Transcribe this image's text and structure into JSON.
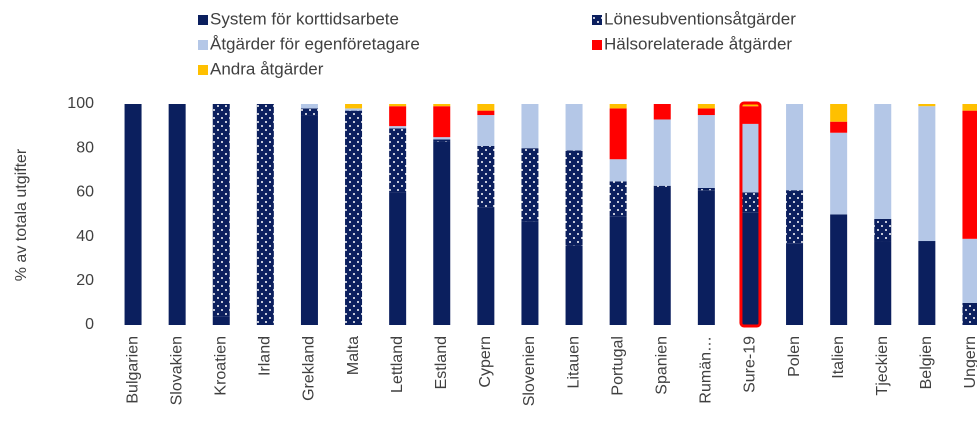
{
  "chart_data": {
    "type": "stacked_bar",
    "y_label": "% av totala utgifter",
    "categories": [
      "Bulgarien",
      "Slovakien",
      "Kroatien",
      "Irland",
      "Grekland",
      "Malta",
      "Lettland",
      "Estland",
      "Cypern",
      "Slovenien",
      "Litauen",
      "Portugal",
      "Spanien",
      "Rumän…",
      "Sure-19",
      "Polen",
      "Italien",
      "Tjeckien",
      "Belgien",
      "Ungern"
    ],
    "series": [
      {
        "name": "System för korttidsarbete",
        "color": "#0b1f5e",
        "values": [
          100,
          100,
          4,
          0,
          95,
          0,
          60,
          83,
          53,
          47,
          36,
          49,
          62,
          61,
          51,
          37,
          50,
          38,
          38,
          0
        ]
      },
      {
        "name": "Lönesubventionsåtgärder",
        "color": "#0b1f5e",
        "pattern": "dots",
        "values": [
          0,
          0,
          96,
          100,
          3,
          97,
          29,
          1,
          28,
          33,
          43,
          16,
          1,
          1,
          9,
          24,
          0,
          10,
          0,
          10
        ]
      },
      {
        "name": "Åtgärder för egenföretagare",
        "color": "#b4c7e7",
        "values": [
          0,
          0,
          0,
          0,
          2,
          1,
          1,
          1,
          14,
          20,
          21,
          10,
          30,
          33,
          31,
          39,
          37,
          52,
          61,
          29
        ]
      },
      {
        "name": "Hälsorelaterade åtgärder",
        "color": "#ff0000",
        "values": [
          0,
          0,
          0,
          0,
          0,
          0,
          9,
          14,
          2,
          0,
          0,
          23,
          7,
          3,
          8,
          0,
          5,
          0,
          0,
          58
        ]
      },
      {
        "name": "Andra åtgärder",
        "color": "#ffc000",
        "values": [
          0,
          0,
          0,
          0,
          0,
          2,
          1,
          1,
          3,
          0,
          0,
          2,
          0,
          2,
          1,
          0,
          8,
          0,
          1,
          3
        ]
      }
    ],
    "highlight": "Sure-19",
    "ylim": [
      0,
      100
    ],
    "yticks": [
      0,
      20,
      40,
      60,
      80,
      100
    ]
  }
}
